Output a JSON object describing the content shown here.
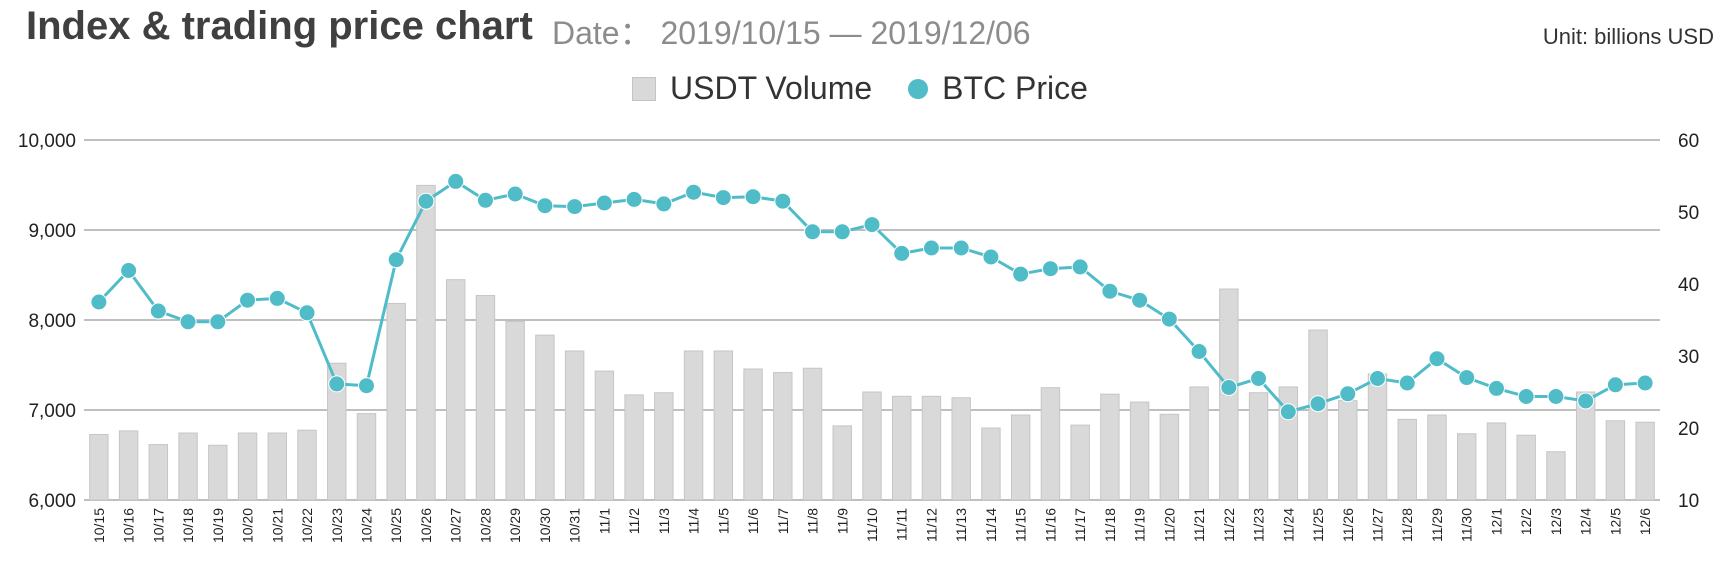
{
  "header": {
    "title": "Index & trading price chart",
    "date_label": "Date：",
    "date_range": "2019/10/15 — 2019/12/06",
    "unit": "Unit: billions USD"
  },
  "legend": {
    "volume": "USDT Volume",
    "price": "BTC Price"
  },
  "colors": {
    "bar": "#d9d9d9",
    "bar_stroke": "#c6c6c6",
    "line": "#4fbcc8",
    "grid": "#bfbfbf"
  },
  "chart_data": {
    "type": "bar",
    "categories": [
      "10/15",
      "10/16",
      "10/17",
      "10/18",
      "10/19",
      "10/20",
      "10/21",
      "10/22",
      "10/23",
      "10/24",
      "10/25",
      "10/26",
      "10/27",
      "10/28",
      "10/29",
      "10/30",
      "10/31",
      "11/1",
      "11/2",
      "11/3",
      "11/4",
      "11/5",
      "11/6",
      "11/7",
      "11/8",
      "11/9",
      "11/10",
      "11/11",
      "11/12",
      "11/13",
      "11/14",
      "11/15",
      "11/16",
      "11/17",
      "11/18",
      "11/19",
      "11/20",
      "11/21",
      "11/22",
      "11/23",
      "11/24",
      "11/25",
      "11/26",
      "11/27",
      "11/28",
      "11/29",
      "11/30",
      "12/1",
      "12/2",
      "12/3",
      "12/4",
      "12/5",
      "12/6"
    ],
    "series": [
      {
        "name": "USDT Volume",
        "type": "bar",
        "axis": "right",
        "values": [
          19.1,
          19.6,
          17.7,
          19.3,
          17.6,
          19.3,
          19.3,
          19.7,
          29.0,
          22.0,
          37.3,
          53.7,
          40.6,
          38.4,
          34.8,
          32.9,
          30.7,
          27.9,
          24.6,
          24.9,
          30.7,
          30.7,
          28.2,
          27.7,
          28.3,
          20.3,
          25.0,
          24.4,
          24.4,
          24.2,
          20.0,
          21.8,
          25.6,
          20.4,
          24.7,
          23.6,
          21.9,
          25.7,
          39.3,
          24.9,
          25.7,
          33.6,
          23.8,
          27.5,
          21.2,
          21.8,
          19.2,
          20.7,
          19.0,
          16.7,
          25.0,
          21.0,
          20.8
        ]
      },
      {
        "name": "BTC Price",
        "type": "line",
        "axis": "left",
        "values": [
          8200,
          8550,
          8100,
          7980,
          7980,
          8220,
          8240,
          8080,
          7290,
          7270,
          8670,
          9320,
          9540,
          9330,
          9400,
          9270,
          9260,
          9300,
          9340,
          9290,
          9420,
          9360,
          9370,
          9320,
          8980,
          8980,
          9060,
          8740,
          8800,
          8800,
          8700,
          8510,
          8570,
          8590,
          8320,
          8220,
          8010,
          7650,
          7250,
          7350,
          6980,
          7070,
          7180,
          7350,
          7300,
          7570,
          7360,
          7240,
          7150,
          7150,
          7100,
          7280,
          7300
        ]
      }
    ],
    "y_left": {
      "min": 6000,
      "max": 10000,
      "ticks": [
        "6,000",
        "7,000",
        "8,000",
        "9,000",
        "10,000"
      ]
    },
    "y_right": {
      "min": 10,
      "max": 60,
      "ticks": [
        "10",
        "20",
        "30",
        "40",
        "50",
        "60"
      ]
    },
    "grid": true,
    "legend_position": "top-center"
  }
}
